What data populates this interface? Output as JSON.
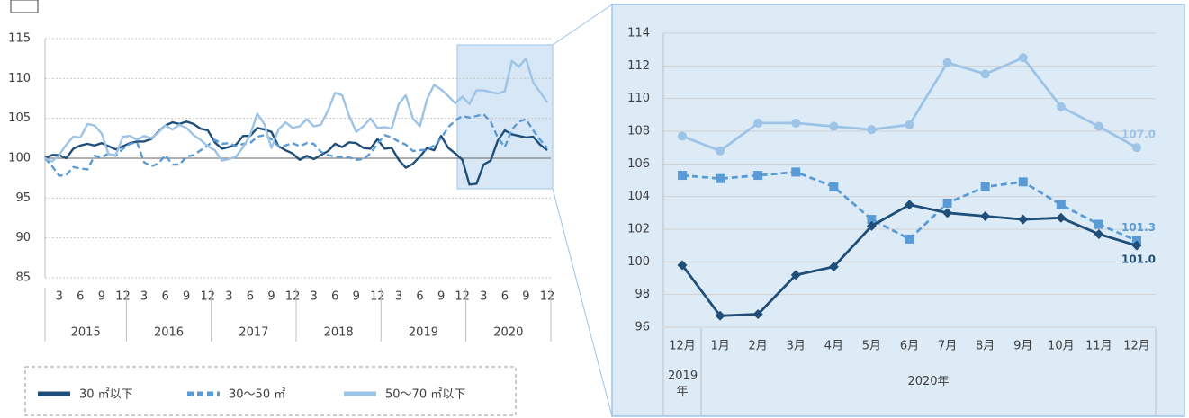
{
  "chart_data": [
    {
      "type": "line",
      "categories": [
        null,
        null,
        "3",
        null,
        null,
        "6",
        null,
        null,
        "9",
        null,
        null,
        "12",
        null,
        null,
        "3",
        null,
        null,
        "6",
        null,
        null,
        "9",
        null,
        null,
        "12",
        null,
        null,
        "3",
        null,
        null,
        "6",
        null,
        null,
        "9",
        null,
        null,
        "12",
        null,
        null,
        "3",
        null,
        null,
        "6",
        null,
        null,
        "9",
        null,
        null,
        "12",
        null,
        null,
        "3",
        null,
        null,
        "6",
        null,
        null,
        "9",
        null,
        null,
        "12",
        null,
        null,
        "3",
        null,
        null,
        "6",
        null,
        null,
        "9",
        null,
        null,
        "12"
      ],
      "groups": [
        {
          "label": "2015",
          "count": 12
        },
        {
          "label": "2016",
          "count": 12
        },
        {
          "label": "2017",
          "count": 12
        },
        {
          "label": "2018",
          "count": 12
        },
        {
          "label": "2019",
          "count": 12
        },
        {
          "label": "2020",
          "count": 12
        }
      ],
      "ylim": [
        85,
        115
      ],
      "yticks": [
        85,
        90,
        95,
        100,
        105,
        110,
        115
      ],
      "grid": true,
      "reference_line": 100,
      "legend": "bottom-left",
      "series": [
        {
          "name": "30 ㎡以下",
          "color": "#1f4e79",
          "dash": false,
          "values": [
            100,
            100.4,
            100.4,
            100,
            101.2,
            101.6,
            101.8,
            101.6,
            101.9,
            101.5,
            101.1,
            101.5,
            101.9,
            102.1,
            102.1,
            102.4,
            103.3,
            104.1,
            104.5,
            104.3,
            104.6,
            104.3,
            103.7,
            103.5,
            102.0,
            101.2,
            101.4,
            101.7,
            102.8,
            102.8,
            103.8,
            103.6,
            103.3,
            101.5,
            101.0,
            100.6,
            99.8,
            100.3,
            99.9,
            100.4,
            100.9,
            101.8,
            101.4,
            102.0,
            101.9,
            101.3,
            101.2,
            102.4,
            101.2,
            101.3,
            99.8,
            98.8,
            99.3,
            100.2,
            101.3,
            101.0,
            102.8,
            101.3,
            100.6,
            99.8,
            96.7,
            96.8,
            99.2,
            99.7,
            102.2,
            103.5,
            103.0,
            102.8,
            102.6,
            102.7,
            101.7,
            101.0
          ]
        },
        {
          "name": "30～50 ㎡",
          "color": "#5b9bd5",
          "dash": true,
          "values": [
            100,
            99.0,
            97.8,
            97.9,
            98.9,
            98.7,
            98.6,
            100.3,
            100.1,
            100.6,
            100.3,
            101.2,
            101.8,
            102.0,
            99.5,
            99.0,
            99.3,
            100.4,
            99.2,
            99.2,
            100.2,
            100.4,
            101.0,
            101.6,
            102.3,
            101.8,
            101.9,
            101.5,
            101.8,
            101.9,
            102.7,
            102.9,
            102.4,
            101.5,
            101.6,
            101.9,
            101.5,
            101.9,
            101.8,
            100.8,
            100.4,
            100.2,
            100.2,
            100.1,
            99.8,
            99.9,
            100.6,
            101.8,
            102.9,
            102.6,
            102.1,
            101.7,
            100.9,
            101.0,
            101.1,
            101.6,
            102.5,
            103.9,
            104.7,
            105.3,
            105.1,
            105.3,
            105.5,
            104.6,
            102.6,
            101.4,
            103.6,
            104.6,
            104.9,
            103.5,
            102.3,
            101.3
          ]
        },
        {
          "name": "50～70 ㎡以下",
          "color": "#9dc3e6",
          "dash": false,
          "values": [
            100,
            99.6,
            100.4,
            101.7,
            102.7,
            102.6,
            104.3,
            104.1,
            103.1,
            100.5,
            100.4,
            102.7,
            102.8,
            102.3,
            102.8,
            102.5,
            103.2,
            104.1,
            103.6,
            104.2,
            103.8,
            102.9,
            102.3,
            101.5,
            101.0,
            99.7,
            99.9,
            100.2,
            101.4,
            102.9,
            105.6,
            104.3,
            101.3,
            103.6,
            104.5,
            103.8,
            104.0,
            104.9,
            104.0,
            104.2,
            106.0,
            108.2,
            107.9,
            105.3,
            103.3,
            104.0,
            105.0,
            103.8,
            103.9,
            103.7,
            106.8,
            107.9,
            105.0,
            104.0,
            107.4,
            109.2,
            108.6,
            107.8,
            106.9,
            107.7,
            106.8,
            108.5,
            108.5,
            108.3,
            108.1,
            108.4,
            112.2,
            111.5,
            112.5,
            109.5,
            108.3,
            107.0
          ]
        }
      ]
    },
    {
      "type": "line",
      "categories": [
        "12月",
        "1月",
        "2月",
        "3月",
        "4月",
        "5月",
        "6月",
        "7月",
        "8月",
        "9月",
        "10月",
        "11月",
        "12月"
      ],
      "groups": [
        {
          "label": "2019年",
          "count": 1
        },
        {
          "label": "2020年",
          "count": 12
        }
      ],
      "ylim": [
        96,
        114
      ],
      "yticks": [
        96,
        98,
        100,
        102,
        104,
        106,
        108,
        110,
        112,
        114
      ],
      "grid": true,
      "series": [
        {
          "color": "#9dc3e6",
          "dash": false,
          "marker": "circle",
          "values": [
            107.7,
            106.8,
            108.5,
            108.5,
            108.3,
            108.1,
            108.4,
            112.2,
            111.5,
            112.5,
            109.5,
            108.3,
            107.0
          ],
          "value_labels": [
            null,
            null,
            null,
            null,
            null,
            null,
            null,
            null,
            null,
            null,
            null,
            null,
            "107.0"
          ]
        },
        {
          "color": "#5b9bd5",
          "dash": true,
          "marker": "square",
          "values": [
            105.3,
            105.1,
            105.3,
            105.5,
            104.6,
            102.6,
            101.4,
            103.6,
            104.6,
            104.9,
            103.5,
            102.3,
            101.3
          ],
          "value_labels": [
            null,
            null,
            null,
            null,
            null,
            null,
            null,
            null,
            null,
            null,
            null,
            null,
            "101.3"
          ]
        },
        {
          "color": "#1f4e79",
          "dash": false,
          "marker": "diamond",
          "values": [
            99.8,
            96.7,
            96.8,
            99.2,
            99.7,
            102.2,
            103.5,
            103.0,
            102.8,
            102.6,
            102.7,
            101.7,
            101.0
          ],
          "value_labels": [
            null,
            null,
            null,
            null,
            null,
            null,
            null,
            null,
            null,
            null,
            null,
            null,
            "101.0"
          ]
        }
      ]
    }
  ]
}
